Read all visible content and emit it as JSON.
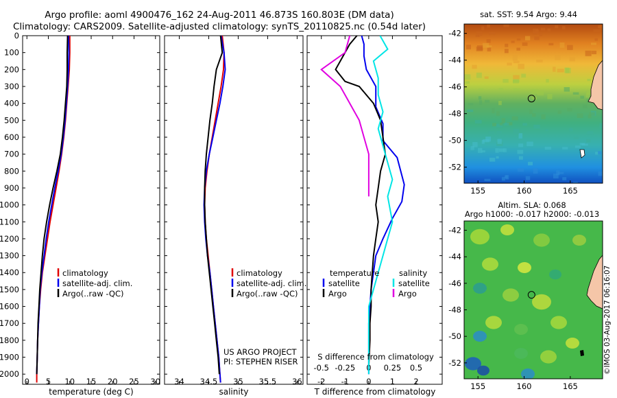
{
  "title_line1": "Argo profile: aoml 4900476_162 24-Aug-2011 46.873S 160.803E (DM data)",
  "title_line2": "Climatology: CARS2009. Satellite-adjusted climatology: synTS_20110825.nc (0.54d later)",
  "credit": "©IMOS 03-Aug-2017 06:16:07",
  "colors": {
    "climatology": "#e00000",
    "satellite": "#0000ee",
    "argo": "#000000",
    "sal_satellite": "#00e5e5",
    "sal_argo": "#e000e0"
  },
  "chart_data": [
    {
      "type": "line",
      "panel": "temperature",
      "xlabel": "temperature (deg C)",
      "ylabel": "",
      "xlim": [
        -1,
        31
      ],
      "ylim": [
        2060,
        0
      ],
      "xticks": [
        0,
        5,
        10,
        15,
        20,
        25,
        30
      ],
      "yticks": [
        0,
        100,
        200,
        300,
        400,
        500,
        600,
        700,
        800,
        900,
        1000,
        1100,
        1200,
        1300,
        1400,
        1500,
        1600,
        1700,
        1800,
        1900,
        2000
      ],
      "legend": [
        "climatology",
        "satellite-adj. clim.",
        "Argo(..raw -QC)"
      ],
      "legend_position": "lower-right",
      "series": [
        {
          "name": "climatology",
          "color": "#e00000",
          "x": [
            10.0,
            10.0,
            9.9,
            9.6,
            9.3,
            9.0,
            8.6,
            8.1,
            7.5,
            6.8,
            6.1,
            5.4,
            4.8,
            4.2,
            3.6,
            3.2,
            2.9,
            2.7,
            2.5,
            2.4,
            2.3,
            2.3
          ],
          "y": [
            0,
            100,
            200,
            300,
            400,
            500,
            600,
            700,
            800,
            900,
            1000,
            1100,
            1200,
            1300,
            1400,
            1500,
            1600,
            1700,
            1800,
            1900,
            2000,
            2050
          ]
        },
        {
          "name": "satellite-adj. clim.",
          "color": "#0000ee",
          "x": [
            9.7,
            9.8,
            9.7,
            9.5,
            9.2,
            8.9,
            8.5,
            8.0,
            7.3,
            6.5,
            5.8,
            5.1,
            4.5,
            4.0,
            3.5,
            3.1,
            2.9,
            2.7,
            2.5,
            2.4,
            2.3
          ],
          "y": [
            0,
            100,
            200,
            300,
            400,
            500,
            600,
            700,
            800,
            900,
            1000,
            1100,
            1200,
            1300,
            1400,
            1500,
            1600,
            1700,
            1800,
            1900,
            2000
          ]
        },
        {
          "name": "Argo(..raw -QC)",
          "color": "#000000",
          "x": [
            9.5,
            9.4,
            9.4,
            9.3,
            9.0,
            8.7,
            8.3,
            7.8,
            7.0,
            6.1,
            5.3,
            4.6,
            4.0,
            3.6,
            3.3,
            3.0,
            2.8,
            2.6,
            2.5,
            2.4,
            2.3
          ],
          "y": [
            0,
            100,
            200,
            300,
            400,
            500,
            600,
            700,
            800,
            900,
            1000,
            1100,
            1200,
            1300,
            1400,
            1500,
            1600,
            1700,
            1800,
            1900,
            2000
          ]
        }
      ]
    },
    {
      "type": "line",
      "panel": "salinity",
      "xlabel": "salinity",
      "ylabel": "",
      "xlim": [
        33.75,
        36.1
      ],
      "ylim": [
        2060,
        0
      ],
      "xticks": [
        34,
        34.5,
        35,
        35.5,
        36
      ],
      "legend": [
        "climatology",
        "satellite-adj. clim.",
        "Argo(..raw -QC)"
      ],
      "legend_position": "lower-right",
      "annotation_line1": "US ARGO PROJECT",
      "annotation_line2": "PI: STEPHEN RISER",
      "series": [
        {
          "name": "climatology",
          "color": "#e00000",
          "x": [
            34.73,
            34.76,
            34.75,
            34.71,
            34.66,
            34.61,
            34.56,
            34.51,
            34.47,
            34.44,
            34.43,
            34.44,
            34.46,
            34.49,
            34.52,
            34.55,
            34.58,
            34.61,
            34.64,
            34.67,
            34.69,
            34.7
          ],
          "y": [
            0,
            100,
            200,
            300,
            400,
            500,
            600,
            700,
            800,
            900,
            1000,
            1100,
            1200,
            1300,
            1400,
            1500,
            1600,
            1700,
            1800,
            1900,
            2000,
            2050
          ]
        },
        {
          "name": "satellite-adj. clim.",
          "color": "#0000ee",
          "x": [
            34.71,
            34.76,
            34.78,
            34.74,
            34.69,
            34.63,
            34.57,
            34.51,
            34.46,
            34.43,
            34.42,
            34.43,
            34.45,
            34.48,
            34.52,
            34.55,
            34.58,
            34.61,
            34.64,
            34.67,
            34.69,
            34.7
          ],
          "y": [
            0,
            100,
            200,
            300,
            400,
            500,
            600,
            700,
            800,
            900,
            1000,
            1100,
            1200,
            1300,
            1400,
            1500,
            1600,
            1700,
            1800,
            1900,
            2000,
            2050
          ]
        },
        {
          "name": "Argo(..raw -QC)",
          "color": "#000000",
          "x": [
            34.7,
            34.73,
            34.63,
            34.59,
            34.56,
            34.52,
            34.49,
            34.46,
            34.44,
            34.43,
            34.43,
            34.44,
            34.46,
            34.48,
            34.51,
            34.54,
            34.57,
            34.6,
            34.63,
            34.66,
            34.68
          ],
          "y": [
            0,
            100,
            200,
            300,
            400,
            500,
            600,
            700,
            800,
            900,
            1000,
            1100,
            1200,
            1300,
            1400,
            1500,
            1600,
            1700,
            1800,
            1900,
            2000
          ]
        }
      ]
    },
    {
      "type": "line",
      "panel": "difference",
      "xlabel": "T difference from climatology",
      "xlabel_top": "S difference from climatology",
      "xlim": [
        -2.6,
        3.1
      ],
      "ylim": [
        2060,
        0
      ],
      "xticks": [
        -2,
        -1,
        0,
        1,
        2
      ],
      "xticks_s": [
        -0.5,
        -0.25,
        0,
        0.25,
        0.5
      ],
      "legend_temperature_title": "temperature",
      "legend_salinity_title": "salinity",
      "legend_temperature": [
        "satellite",
        "Argo"
      ],
      "legend_salinity": [
        "satellite",
        "Argo"
      ],
      "legend_position": "lower-center",
      "series": [
        {
          "name": "satellite",
          "group": "temperature",
          "color": "#0000ee",
          "x": [
            -0.3,
            -0.2,
            -0.2,
            -0.1,
            0.3,
            0.3,
            0.6,
            0.6,
            1.2,
            1.5,
            1.4,
            1.0,
            0.6,
            0.3,
            0.2,
            0.1,
            0.05,
            0.0,
            0.0,
            0.0,
            0.0
          ],
          "y": [
            0,
            50,
            120,
            200,
            300,
            420,
            520,
            620,
            720,
            880,
            980,
            1080,
            1200,
            1300,
            1400,
            1500,
            1600,
            1700,
            1800,
            1900,
            2000
          ]
        },
        {
          "name": "Argo",
          "group": "temperature",
          "color": "#000000",
          "x": [
            -0.5,
            -0.8,
            -1.4,
            -1.0,
            -0.4,
            0.2,
            0.5,
            0.6,
            0.7,
            0.5,
            0.4,
            0.3,
            0.4,
            0.3,
            0.2,
            0.15,
            0.1,
            0.1,
            0.05,
            0.05,
            0.0
          ],
          "y": [
            0,
            50,
            200,
            270,
            300,
            400,
            500,
            600,
            700,
            800,
            900,
            1000,
            1100,
            1200,
            1300,
            1400,
            1500,
            1600,
            1700,
            1800,
            1950
          ]
        },
        {
          "name": "satellite",
          "group": "salinity",
          "color": "#00e5e5",
          "x": [
            0.12,
            0.2,
            0.05,
            0.1,
            0.1,
            0.15,
            0.1,
            0.15,
            0.2,
            0.25,
            0.2,
            0.25,
            0.2,
            0.15,
            0.1,
            0.05,
            0.0,
            0.0,
            0.0,
            0.0
          ],
          "y": [
            0,
            80,
            150,
            250,
            350,
            450,
            550,
            650,
            750,
            850,
            950,
            1100,
            1200,
            1300,
            1400,
            1500,
            1600,
            1700,
            1850,
            2000
          ]
        },
        {
          "name": "Argo",
          "group": "salinity",
          "color": "#e000e0",
          "x": [
            -0.2,
            -0.25,
            -0.5,
            -0.3,
            -0.2,
            -0.1,
            -0.05,
            0.0,
            0.0,
            0.0,
            0.0
          ],
          "y": [
            0,
            100,
            200,
            300,
            400,
            500,
            600,
            700,
            800,
            900,
            950
          ]
        }
      ]
    },
    {
      "type": "heatmap",
      "panel": "sst_map",
      "title": "sat. SST: 9.54  Argo: 9.44",
      "xlim": [
        153.5,
        168.5
      ],
      "ylim": [
        -53.2,
        -41.3
      ],
      "xticks": [
        155,
        160,
        165
      ],
      "yticks": [
        -42,
        -44,
        -46,
        -48,
        -50,
        -52
      ],
      "marker": {
        "lon": 160.8,
        "lat": -46.87
      }
    },
    {
      "type": "heatmap",
      "panel": "sla_map",
      "title_line1": "Altim. SLA: 0.068",
      "title_line2": "Argo h1000: -0.017  h2000: -0.013",
      "xlim": [
        153.5,
        168.5
      ],
      "ylim": [
        -53.2,
        -41.3
      ],
      "xticks": [
        155,
        160,
        165
      ],
      "yticks": [
        -42,
        -44,
        -46,
        -48,
        -50,
        -52
      ],
      "marker": {
        "lon": 160.8,
        "lat": -46.87
      }
    }
  ]
}
